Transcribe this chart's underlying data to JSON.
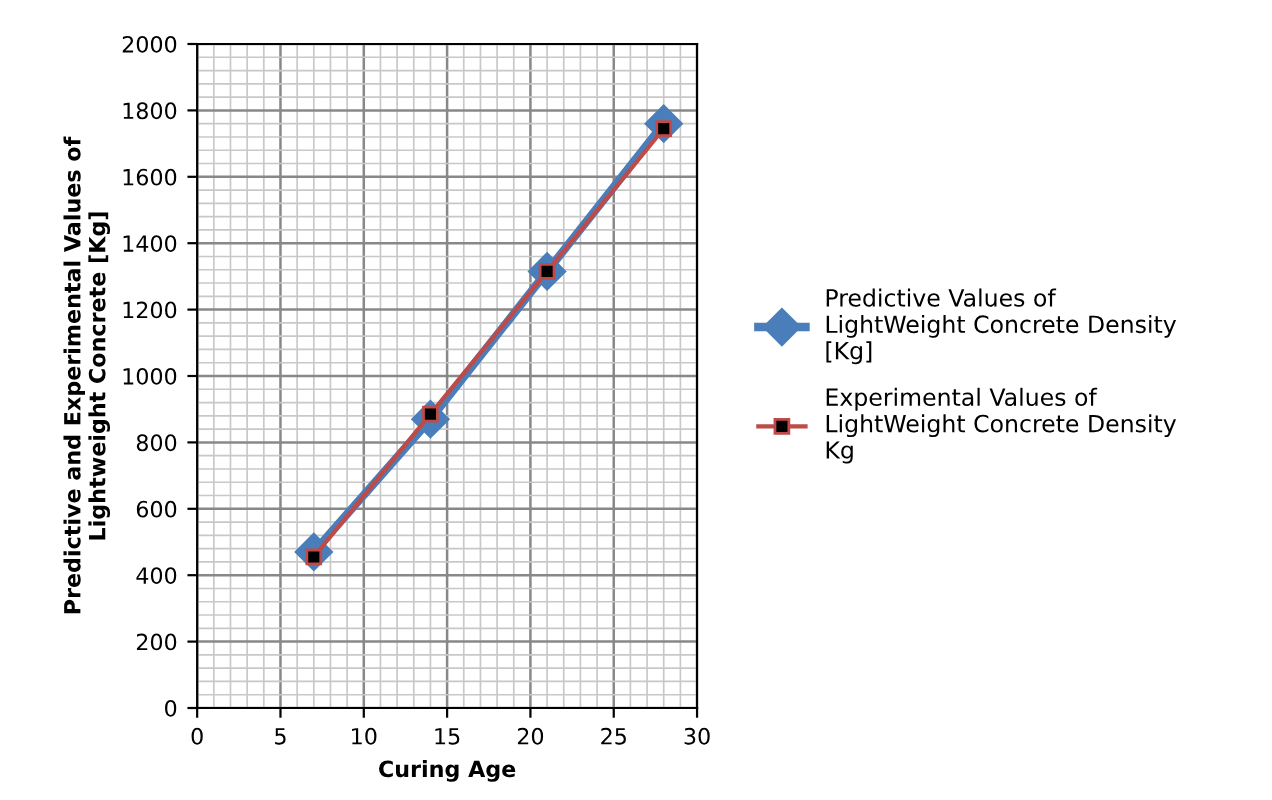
{
  "chart_data": {
    "type": "line",
    "xlabel": "Curing Age",
    "ylabel": "Predictive and Experimental Values of Lightweight Concrete [Kg]",
    "x": [
      7,
      14,
      21,
      28
    ],
    "series": [
      {
        "name": "Predictive Values of LightWeight Concrete Density [Kg]",
        "color": "#4a7ebb",
        "values": [
          470,
          870,
          1315,
          1760
        ],
        "marker": "diamond"
      },
      {
        "name": "Experimental Values of LightWeight Concrete Density Kg",
        "color": "#be4b48",
        "values": [
          455,
          885,
          1315,
          1745
        ],
        "marker": "square"
      }
    ],
    "xlim": [
      0,
      30
    ],
    "xticks": [
      0,
      5,
      10,
      15,
      20,
      25,
      30
    ],
    "ylim": [
      0,
      2000
    ],
    "yticks": [
      0,
      200,
      400,
      600,
      800,
      1000,
      1200,
      1400,
      1600,
      1800,
      2000
    ],
    "grid": true,
    "legend": "right",
    "line_style": "solid"
  }
}
